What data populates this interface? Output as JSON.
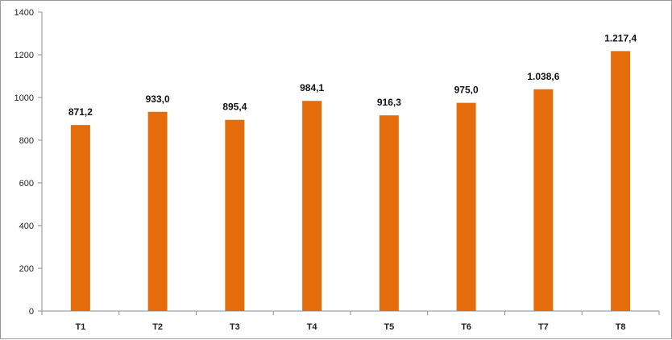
{
  "chart_data": {
    "type": "bar",
    "categories": [
      "T1",
      "T2",
      "T3",
      "T4",
      "T5",
      "T6",
      "T7",
      "T8"
    ],
    "values": [
      871.2,
      933.0,
      895.4,
      984.1,
      916.3,
      975.0,
      1038.6,
      1217.4
    ],
    "data_labels": [
      "871,2",
      "933,0",
      "895,4",
      "984,1",
      "916,3",
      "975,0",
      "1.038,6",
      "1.217,4"
    ],
    "ylim": [
      0,
      1400
    ],
    "yticks": [
      0,
      200,
      400,
      600,
      800,
      1000,
      1200,
      1400
    ],
    "ytick_labels": [
      "0",
      "200",
      "400",
      "600",
      "800",
      "1000",
      "1200",
      "1400"
    ],
    "title": "",
    "xlabel": "",
    "ylabel": "",
    "grid": false,
    "legend": "none",
    "bar_color": "#E46C0A"
  }
}
